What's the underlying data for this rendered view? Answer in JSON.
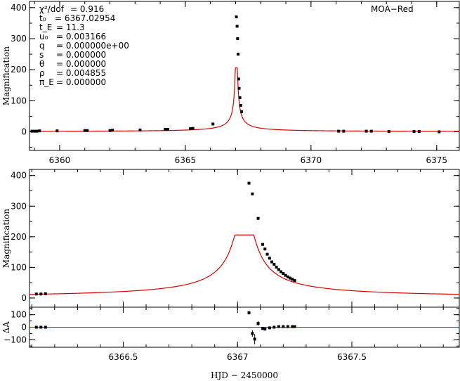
{
  "observatory_label": "MOA−Red",
  "x_axis_label": "HJD − 2450000",
  "model_color": "#dd0000",
  "point_color": "#000000",
  "params": [
    {
      "name": "χ²/dof",
      "value": "= 0.916"
    },
    {
      "name": "t₀",
      "value": "= 6367.02954"
    },
    {
      "name": "t_E",
      "value": "= 11.3"
    },
    {
      "name": "u₀",
      "value": "= 0.003166"
    },
    {
      "name": "q",
      "value": "= 0.000000e+00"
    },
    {
      "name": "s",
      "value": "= 0.000000"
    },
    {
      "name": "θ",
      "value": "= 0.000000"
    },
    {
      "name": "ρ",
      "value": "= 0.004855"
    },
    {
      "name": "π_E",
      "value": "= 0.000000"
    }
  ],
  "chart_data": [
    {
      "type": "scatter",
      "title": "",
      "xlabel": "",
      "ylabel": "Magnification",
      "xlim": [
        6358.8,
        6375.9
      ],
      "ylim": [
        -60,
        420
      ],
      "xticks": [
        "6360",
        "6365",
        "6370",
        "6375"
      ],
      "xtick_values": [
        6360,
        6365,
        6370,
        6375
      ],
      "yticks": [
        "0",
        "100",
        "200",
        "300",
        "400"
      ],
      "ytick_values": [
        0,
        100,
        200,
        300,
        400
      ],
      "model": {
        "t0": 6367.0295,
        "tE": 11.3,
        "u0": 0.003166,
        "rho": 0.004855
      },
      "points": [
        [
          6358.9,
          2
        ],
        [
          6359.0,
          2
        ],
        [
          6359.1,
          2
        ],
        [
          6359.2,
          3
        ],
        [
          6359.9,
          3
        ],
        [
          6361.0,
          4
        ],
        [
          6361.1,
          4
        ],
        [
          6362.0,
          4
        ],
        [
          6362.1,
          5
        ],
        [
          6363.2,
          6
        ],
        [
          6364.2,
          8
        ],
        [
          6364.3,
          8
        ],
        [
          6365.2,
          10
        ],
        [
          6365.3,
          11
        ],
        [
          6366.1,
          25
        ],
        [
          6367.03,
          370
        ],
        [
          6367.06,
          340
        ],
        [
          6367.08,
          300
        ],
        [
          6367.1,
          250
        ],
        [
          6367.12,
          170
        ],
        [
          6367.14,
          140
        ],
        [
          6367.17,
          110
        ],
        [
          6367.2,
          85
        ],
        [
          6367.24,
          65
        ],
        [
          6371.1,
          2
        ],
        [
          6371.3,
          2
        ],
        [
          6372.2,
          2
        ],
        [
          6372.4,
          2
        ],
        [
          6373.1,
          1
        ],
        [
          6374.1,
          1
        ],
        [
          6374.3,
          1
        ],
        [
          6375.1,
          0
        ]
      ]
    },
    {
      "type": "scatter",
      "title": "",
      "xlabel": "",
      "ylabel": "Magnification",
      "xlim": [
        6366.09,
        6367.97
      ],
      "ylim": [
        -30,
        420
      ],
      "xticks": [],
      "xtick_values": [],
      "yticks": [
        "0",
        "100",
        "200",
        "300",
        "400"
      ],
      "ytick_values": [
        0,
        100,
        200,
        300,
        400
      ],
      "model": {
        "t0": 6367.0295,
        "tE": 11.3,
        "u0": 0.003166,
        "rho": 0.004855
      },
      "points": [
        [
          6366.12,
          13
        ],
        [
          6366.14,
          13
        ],
        [
          6366.16,
          14
        ],
        [
          6367.05,
          375
        ],
        [
          6367.065,
          340
        ],
        [
          6367.09,
          260
        ],
        [
          6367.11,
          175
        ],
        [
          6367.12,
          160
        ],
        [
          6367.13,
          143
        ],
        [
          6367.14,
          130
        ],
        [
          6367.15,
          118
        ],
        [
          6367.16,
          110
        ],
        [
          6367.17,
          101
        ],
        [
          6367.18,
          93
        ],
        [
          6367.19,
          86
        ],
        [
          6367.2,
          80
        ],
        [
          6367.21,
          74
        ],
        [
          6367.22,
          69
        ],
        [
          6367.23,
          65
        ],
        [
          6367.24,
          61
        ],
        [
          6367.25,
          57
        ]
      ]
    },
    {
      "type": "scatter",
      "title": "",
      "xlabel": "HJD − 2450000",
      "ylabel": "ΔA",
      "xlim": [
        6366.09,
        6367.97
      ],
      "ylim": [
        -160,
        160
      ],
      "xticks": [
        "6366.5",
        "6367",
        "6367.5"
      ],
      "xtick_values": [
        6366.5,
        6367,
        6367.5
      ],
      "yticks": [
        "−100",
        "0",
        "100"
      ],
      "ytick_values": [
        -100,
        0,
        100
      ],
      "points": [
        [
          6366.12,
          0
        ],
        [
          6366.14,
          0
        ],
        [
          6366.16,
          0
        ],
        [
          6367.05,
          115
        ],
        [
          6367.065,
          -50
        ],
        [
          6367.075,
          -95
        ],
        [
          6367.09,
          30
        ],
        [
          6367.11,
          -10
        ],
        [
          6367.12,
          -15
        ],
        [
          6367.14,
          -5
        ],
        [
          6367.16,
          0
        ],
        [
          6367.18,
          5
        ],
        [
          6367.2,
          5
        ],
        [
          6367.22,
          5
        ],
        [
          6367.24,
          5
        ],
        [
          6367.25,
          5
        ]
      ],
      "errors": [
        [
          6367.05,
          115,
          14
        ],
        [
          6367.075,
          -95,
          40
        ],
        [
          6367.09,
          30,
          18
        ],
        [
          6367.065,
          -50,
          25
        ]
      ]
    }
  ]
}
